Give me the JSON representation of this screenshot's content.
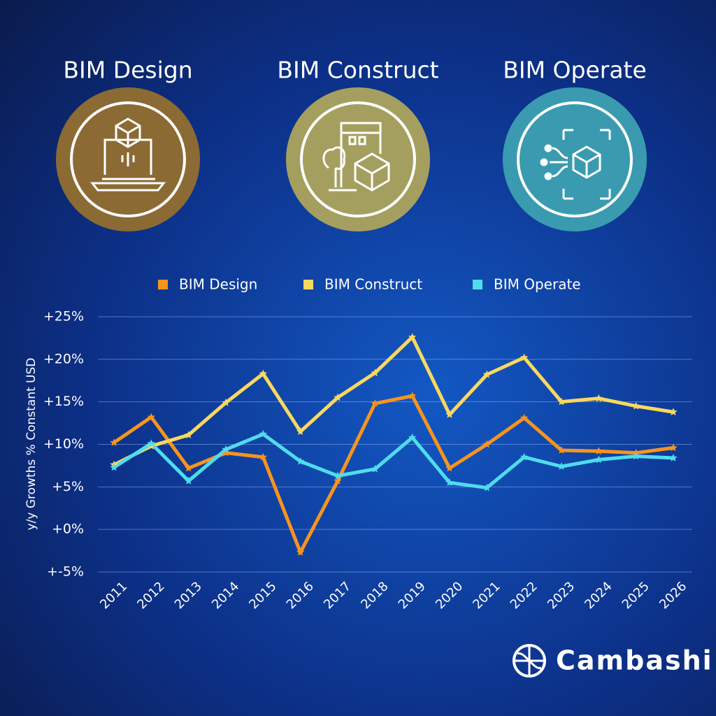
{
  "panels": [
    {
      "label": "BIM Design",
      "color": "#8b6a34"
    },
    {
      "label": "BIM Construct",
      "color": "#a59f5f"
    },
    {
      "label": "BIM Operate",
      "color": "#3a9bb0"
    }
  ],
  "brand": "Cambashi",
  "chart_data": {
    "type": "line",
    "y_label": "y/y Growths % Constant USD",
    "categories": [
      "2011",
      "2012",
      "2013",
      "2014",
      "2015",
      "2016",
      "2017",
      "2018",
      "2019",
      "2020",
      "2021",
      "2022",
      "2023",
      "2024",
      "2025",
      "2026"
    ],
    "series": [
      {
        "name": "BIM Design",
        "color": "#f7941d",
        "values": [
          10.2,
          13.2,
          7.2,
          9.0,
          8.5,
          -2.7,
          5.7,
          14.8,
          15.7,
          7.2,
          10.0,
          13.1,
          9.3,
          9.2,
          9.0,
          9.6
        ]
      },
      {
        "name": "BIM Construct",
        "color": "#f9d85e",
        "values": [
          7.6,
          9.8,
          11.1,
          14.9,
          18.3,
          11.5,
          15.5,
          18.4,
          22.6,
          13.5,
          18.2,
          20.2,
          15.0,
          15.4,
          14.5,
          13.8
        ]
      },
      {
        "name": "BIM Operate",
        "color": "#4fdcee",
        "values": [
          7.3,
          10.1,
          5.7,
          9.4,
          11.2,
          8.0,
          6.3,
          7.1,
          10.8,
          5.5,
          4.9,
          8.5,
          7.4,
          8.2,
          8.6,
          8.4
        ]
      }
    ],
    "ylim": [
      -5,
      25
    ],
    "yticks": [
      {
        "value": -5,
        "label": "+-5%"
      },
      {
        "value": 0,
        "label": "+0%"
      },
      {
        "value": 5,
        "label": "+5%"
      },
      {
        "value": 10,
        "label": "+10%"
      },
      {
        "value": 15,
        "label": "+15%"
      },
      {
        "value": 20,
        "label": "+20%"
      },
      {
        "value": 25,
        "label": "+25%"
      }
    ],
    "grid": true,
    "legend": "top"
  }
}
